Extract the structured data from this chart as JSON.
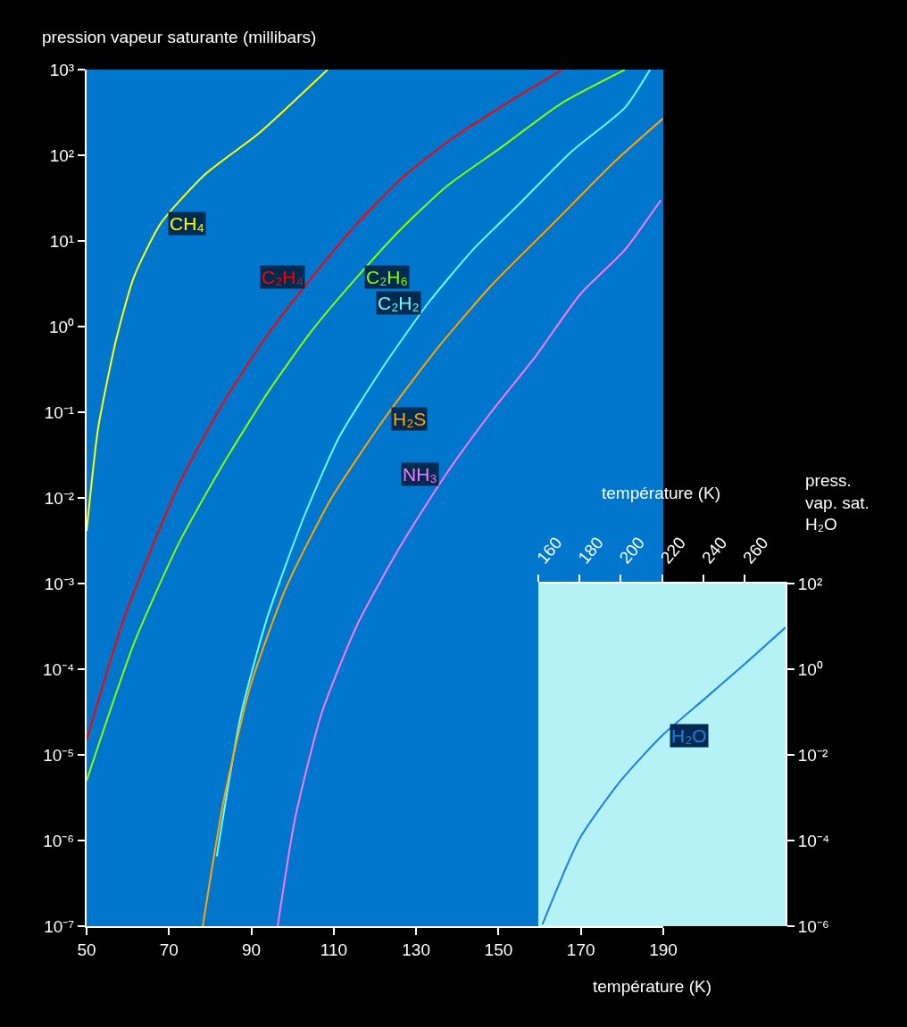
{
  "chart_data": [
    {
      "type": "line",
      "xlabel": "température (K)",
      "ylabel": "pression vapeur saturante (millibars)",
      "log": "y",
      "grid": false,
      "legend": false,
      "xlim": [
        50,
        190
      ],
      "xticks": [
        50,
        70,
        90,
        110,
        130,
        150,
        170,
        190
      ],
      "ylim": [
        1e-07,
        1000
      ],
      "yticks": [
        {
          "value": 1000,
          "label": "10³"
        },
        {
          "value": 100,
          "label": "10²"
        },
        {
          "value": 10,
          "label": "10¹"
        },
        {
          "value": 1,
          "label": "10⁰"
        },
        {
          "value": 0.1,
          "label": "10⁻¹"
        },
        {
          "value": 0.01,
          "label": "10⁻²"
        },
        {
          "value": 0.001,
          "label": "10⁻³"
        },
        {
          "value": 0.0001,
          "label": "10⁻⁴"
        },
        {
          "value": 1e-05,
          "label": "10⁻⁵"
        },
        {
          "value": 1e-06,
          "label": "10⁻⁶"
        },
        {
          "value": 1e-07,
          "label": "10⁻⁷"
        }
      ],
      "series": [
        {
          "name": "CH₄",
          "color": "#ffff00",
          "x": [
            50,
            52.8,
            57.2,
            61.5,
            68,
            78.8,
            91.8,
            108.5
          ],
          "values": [
            0.0041,
            0.065,
            0.71,
            3.8,
            16,
            60,
            180,
            1000
          ]
        },
        {
          "name": "C₂H₄",
          "color": "#ff0000",
          "x": [
            50,
            59.3,
            72.3,
            83.2,
            94,
            104.8,
            115.7,
            126.5,
            137.3,
            150.3,
            165.5
          ],
          "values": [
            1.5e-05,
            0.00042,
            0.014,
            0.13,
            0.81,
            3.8,
            16,
            54,
            140,
            360,
            1000
          ]
        },
        {
          "name": "C₂H₆",
          "color": "#88ff00",
          "x": [
            50,
            61.5,
            72.3,
            83.2,
            94,
            104.8,
            115.7,
            126.5,
            137.3,
            150.3,
            165.5,
            180.7
          ],
          "values": [
            5e-06,
            0.0002,
            0.0029,
            0.025,
            0.17,
            0.91,
            3.8,
            14,
            43,
            120,
            410,
            1000
          ]
        },
        {
          "name": "C₂H₂",
          "color": "#66ffff",
          "x": [
            81.6,
            87.5,
            94,
            102.7,
            111.3,
            122.2,
            133,
            143.8,
            154.7,
            167.7,
            180.7,
            186.8
          ],
          "values": [
            6.5e-07,
            3e-05,
            0.00042,
            0.0059,
            0.051,
            0.35,
            1.9,
            7.9,
            26,
            110,
            360,
            1000
          ]
        },
        {
          "name": "H₂S",
          "color": "#ffa500",
          "x": [
            78.2,
            83.2,
            89.7,
            98.3,
            109.2,
            122.2,
            135.2,
            148.2,
            163.3,
            178.5,
            190
          ],
          "values": [
            1e-07,
            2.8e-06,
            6.2e-05,
            0.00087,
            0.0095,
            0.083,
            0.56,
            3,
            16,
            87,
            270
          ]
        },
        {
          "name": "NH₃",
          "color": "#ff77ff",
          "x": [
            96.4,
            100.5,
            107,
            115.7,
            126.5,
            137.3,
            148.2,
            159,
            169.9,
            180.7,
            189.4
          ],
          "values": [
            1e-07,
            1.7e-06,
            3e-05,
            0.00033,
            0.0029,
            0.019,
            0.1,
            0.45,
            2.4,
            7.9,
            30
          ]
        }
      ]
    },
    {
      "type": "line",
      "xlabel": "température (K)",
      "ylabel": "press.\nvap. sat.\nH₂O",
      "log": "y",
      "grid": false,
      "legend": false,
      "xlim": [
        160,
        280
      ],
      "xticks": [
        160,
        180,
        200,
        220,
        240,
        260
      ],
      "ylim": [
        1e-06,
        100
      ],
      "yticks": [
        {
          "value": 100,
          "label": "10²"
        },
        {
          "value": 1,
          "label": "10⁰"
        },
        {
          "value": 0.01,
          "label": "10⁻²"
        },
        {
          "value": 0.0001,
          "label": "10⁻⁴"
        },
        {
          "value": 1e-06,
          "label": "10⁻⁶"
        }
      ],
      "series": [
        {
          "name": "H₂O",
          "color": "#1e7fe0",
          "x": [
            162,
            180,
            200,
            220,
            240,
            260,
            280
          ],
          "values": [
            1.1e-06,
            0.00011,
            0.0025,
            0.028,
            0.19,
            1.3,
            9.5
          ]
        }
      ]
    }
  ]
}
